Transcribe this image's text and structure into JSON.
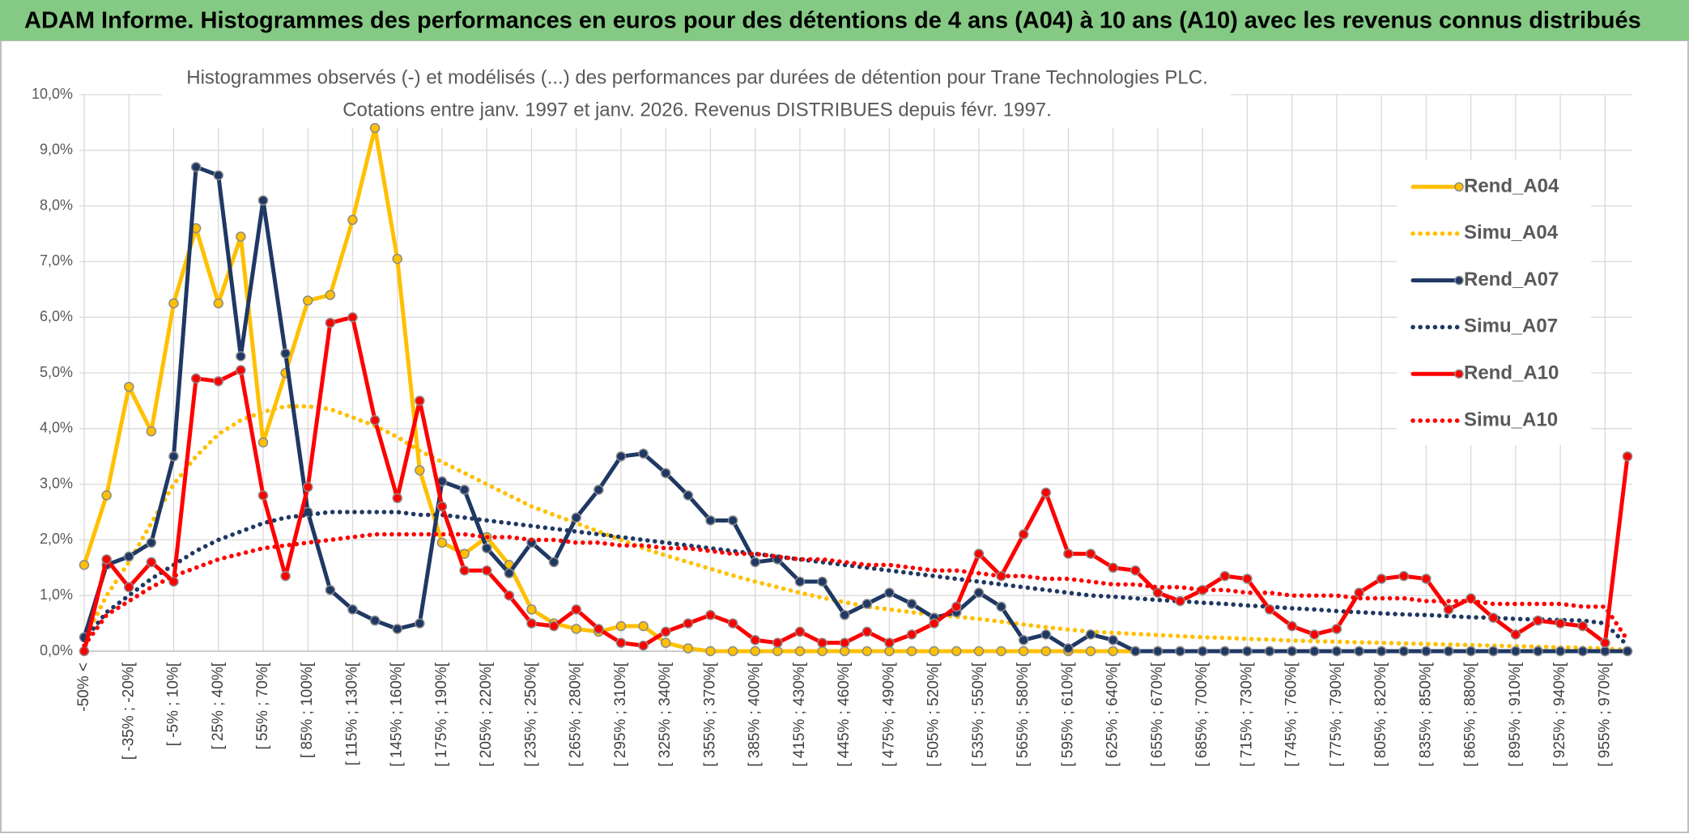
{
  "header": {
    "title": "ADAM Informe. Histogrammes des performances en euros pour des détentions de 4 ans (A04) à 10 ans (A10) avec les revenus connus distribués"
  },
  "chart_data": {
    "type": "line",
    "title": "Histogrammes observés (-) et modélisés (...) des performances par durées de détention pour Trane Technologies PLC.",
    "subtitle": "Cotations entre janv. 1997 et janv. 2026. Revenus DISTRIBUES depuis févr. 1997.",
    "categories": [
      "-50% <",
      null,
      "[ -35% ; -20%[",
      null,
      "[ -5% ; 10%[",
      null,
      "[ 25% ; 40%[",
      null,
      "[ 55% ; 70%[",
      null,
      "[ 85% ; 100%[",
      null,
      "[ 115% ; 130%[",
      null,
      "[ 145% ; 160%[",
      null,
      "[ 175% ; 190%[",
      null,
      "[ 205% ; 220%[",
      null,
      "[ 235% ; 250%[",
      null,
      "[ 265% ; 280%[",
      null,
      "[ 295% ; 310%[",
      null,
      "[ 325% ; 340%[",
      null,
      "[ 355% ; 370%[",
      null,
      "[ 385% ; 400%[",
      null,
      "[ 415% ; 430%[",
      null,
      "[ 445% ; 460%[",
      null,
      "[ 475% ; 490%[",
      null,
      "[ 505% ; 520%[",
      null,
      "[ 535% ; 550%[",
      null,
      "[ 565% ; 580%[",
      null,
      "[ 595% ; 610%[",
      null,
      "[ 625% ; 640%[",
      null,
      "[ 655% ; 670%[",
      null,
      "[ 685% ; 700%[",
      null,
      "[ 715% ; 730%[",
      null,
      "[ 745% ; 760%[",
      null,
      "[ 775% ; 790%[",
      null,
      "[ 805% ; 820%[",
      null,
      "[ 835% ; 850%[",
      null,
      "[ 865% ; 880%[",
      null,
      "[ 895% ; 910%[",
      null,
      "[ 925% ; 940%[",
      null,
      "[ 955% ; 970%[",
      null
    ],
    "series": [
      {
        "name": "Rend_A04",
        "color": "#ffc000",
        "dashed": false,
        "markers": true,
        "values": [
          1.55,
          2.8,
          4.75,
          3.95,
          6.25,
          7.6,
          6.25,
          7.45,
          3.75,
          5.0,
          6.3,
          6.4,
          7.75,
          9.4,
          7.05,
          3.25,
          1.95,
          1.75,
          2.05,
          1.55,
          0.75,
          0.5,
          0.4,
          0.35,
          0.45,
          0.45,
          0.15,
          0.05,
          0,
          0,
          0,
          0,
          0,
          0,
          0,
          0,
          0,
          0,
          0,
          0,
          0,
          0,
          0,
          0,
          0,
          0,
          0,
          0,
          0,
          0,
          0,
          0,
          0,
          0,
          0,
          0,
          0,
          0,
          0,
          0,
          0,
          0,
          0,
          0,
          0,
          0,
          0,
          0,
          0,
          0
        ]
      },
      {
        "name": "Simu_A04",
        "color": "#ffc000",
        "dashed": true,
        "markers": false,
        "values": [
          0.2,
          1.0,
          1.6,
          2.3,
          3.0,
          3.5,
          3.9,
          4.15,
          4.3,
          4.4,
          4.4,
          4.35,
          4.2,
          4.05,
          3.85,
          3.6,
          3.4,
          3.2,
          3.0,
          2.8,
          2.6,
          2.45,
          2.3,
          2.15,
          2.0,
          1.85,
          1.72,
          1.6,
          1.48,
          1.36,
          1.25,
          1.15,
          1.05,
          0.96,
          0.88,
          0.8,
          0.75,
          0.7,
          0.65,
          0.62,
          0.58,
          0.53,
          0.48,
          0.43,
          0.39,
          0.35,
          0.33,
          0.31,
          0.29,
          0.27,
          0.25,
          0.24,
          0.22,
          0.21,
          0.19,
          0.18,
          0.17,
          0.16,
          0.15,
          0.14,
          0.13,
          0.12,
          0.11,
          0.1,
          0.09,
          0.08,
          0.07,
          0.06,
          0.05,
          0.02
        ]
      },
      {
        "name": "Rend_A07",
        "color": "#1f3864",
        "dashed": false,
        "markers": true,
        "values": [
          0.25,
          1.55,
          1.7,
          1.95,
          3.5,
          8.7,
          8.55,
          5.3,
          8.1,
          5.35,
          2.5,
          1.1,
          0.75,
          0.55,
          0.4,
          0.5,
          3.05,
          2.9,
          1.85,
          1.4,
          1.95,
          1.6,
          2.4,
          2.9,
          3.5,
          3.55,
          3.2,
          2.8,
          2.35,
          2.35,
          1.6,
          1.65,
          1.25,
          1.25,
          0.65,
          0.85,
          1.05,
          0.85,
          0.6,
          0.7,
          1.05,
          0.8,
          0.2,
          0.3,
          0.05,
          0.3,
          0.2,
          0,
          0,
          0,
          0,
          0,
          0,
          0,
          0,
          0,
          0,
          0,
          0,
          0,
          0,
          0,
          0,
          0,
          0,
          0,
          0,
          0,
          0,
          0
        ]
      },
      {
        "name": "Simu_A07",
        "color": "#1f3864",
        "dashed": true,
        "markers": false,
        "values": [
          0.2,
          0.7,
          1.0,
          1.3,
          1.55,
          1.8,
          2.0,
          2.15,
          2.3,
          2.4,
          2.45,
          2.5,
          2.5,
          2.5,
          2.5,
          2.45,
          2.45,
          2.4,
          2.35,
          2.3,
          2.25,
          2.2,
          2.15,
          2.1,
          2.05,
          2.0,
          1.95,
          1.9,
          1.85,
          1.8,
          1.75,
          1.7,
          1.65,
          1.6,
          1.55,
          1.5,
          1.45,
          1.4,
          1.35,
          1.3,
          1.25,
          1.2,
          1.15,
          1.1,
          1.05,
          1.0,
          0.98,
          0.95,
          0.92,
          0.9,
          0.87,
          0.85,
          0.82,
          0.8,
          0.77,
          0.75,
          0.72,
          0.7,
          0.68,
          0.66,
          0.65,
          0.63,
          0.61,
          0.6,
          0.58,
          0.57,
          0.56,
          0.55,
          0.5,
          0.1
        ]
      },
      {
        "name": "Rend_A10",
        "color": "#ff0000",
        "dashed": false,
        "markers": true,
        "values": [
          0,
          1.65,
          1.15,
          1.6,
          1.25,
          4.9,
          4.85,
          5.05,
          2.8,
          1.35,
          2.95,
          5.9,
          6.0,
          4.15,
          2.75,
          4.5,
          2.6,
          1.45,
          1.45,
          1.0,
          0.5,
          0.45,
          0.75,
          0.4,
          0.15,
          0.1,
          0.35,
          0.5,
          0.65,
          0.5,
          0.2,
          0.15,
          0.35,
          0.15,
          0.15,
          0.35,
          0.15,
          0.3,
          0.5,
          0.8,
          1.75,
          1.35,
          2.1,
          2.85,
          1.75,
          1.75,
          1.5,
          1.45,
          1.05,
          0.9,
          1.1,
          1.35,
          1.3,
          0.75,
          0.45,
          0.3,
          0.4,
          1.05,
          1.3,
          1.35,
          1.3,
          0.75,
          0.95,
          0.6,
          0.3,
          0.55,
          0.5,
          0.45,
          0.15,
          3.5
        ]
      },
      {
        "name": "Simu_A10",
        "color": "#ff0000",
        "dashed": true,
        "markers": false,
        "values": [
          0.1,
          0.65,
          0.9,
          1.15,
          1.35,
          1.5,
          1.65,
          1.75,
          1.85,
          1.9,
          1.95,
          2.0,
          2.05,
          2.1,
          2.1,
          2.1,
          2.1,
          2.1,
          2.05,
          2.05,
          2.0,
          2.0,
          1.95,
          1.95,
          1.9,
          1.9,
          1.85,
          1.85,
          1.8,
          1.75,
          1.75,
          1.7,
          1.65,
          1.65,
          1.6,
          1.55,
          1.55,
          1.5,
          1.45,
          1.45,
          1.4,
          1.35,
          1.35,
          1.3,
          1.3,
          1.25,
          1.2,
          1.2,
          1.15,
          1.15,
          1.1,
          1.1,
          1.05,
          1.05,
          1.0,
          1.0,
          1.0,
          0.95,
          0.95,
          0.95,
          0.9,
          0.9,
          0.9,
          0.85,
          0.85,
          0.85,
          0.85,
          0.8,
          0.8,
          0.2
        ]
      }
    ],
    "ylim": [
      0,
      10
    ],
    "yticks": [
      {
        "value": 0,
        "label": "0,0%"
      },
      {
        "value": 1,
        "label": "1,0%"
      },
      {
        "value": 2,
        "label": "2,0%"
      },
      {
        "value": 3,
        "label": "3,0%"
      },
      {
        "value": 4,
        "label": "4,0%"
      },
      {
        "value": 5,
        "label": "5,0%"
      },
      {
        "value": 6,
        "label": "6,0%"
      },
      {
        "value": 7,
        "label": "7,0%"
      },
      {
        "value": 8,
        "label": "8,0%"
      },
      {
        "value": 9,
        "label": "9,0%"
      },
      {
        "value": 10,
        "label": "10,0%"
      }
    ],
    "grid": true,
    "legend": "right"
  }
}
